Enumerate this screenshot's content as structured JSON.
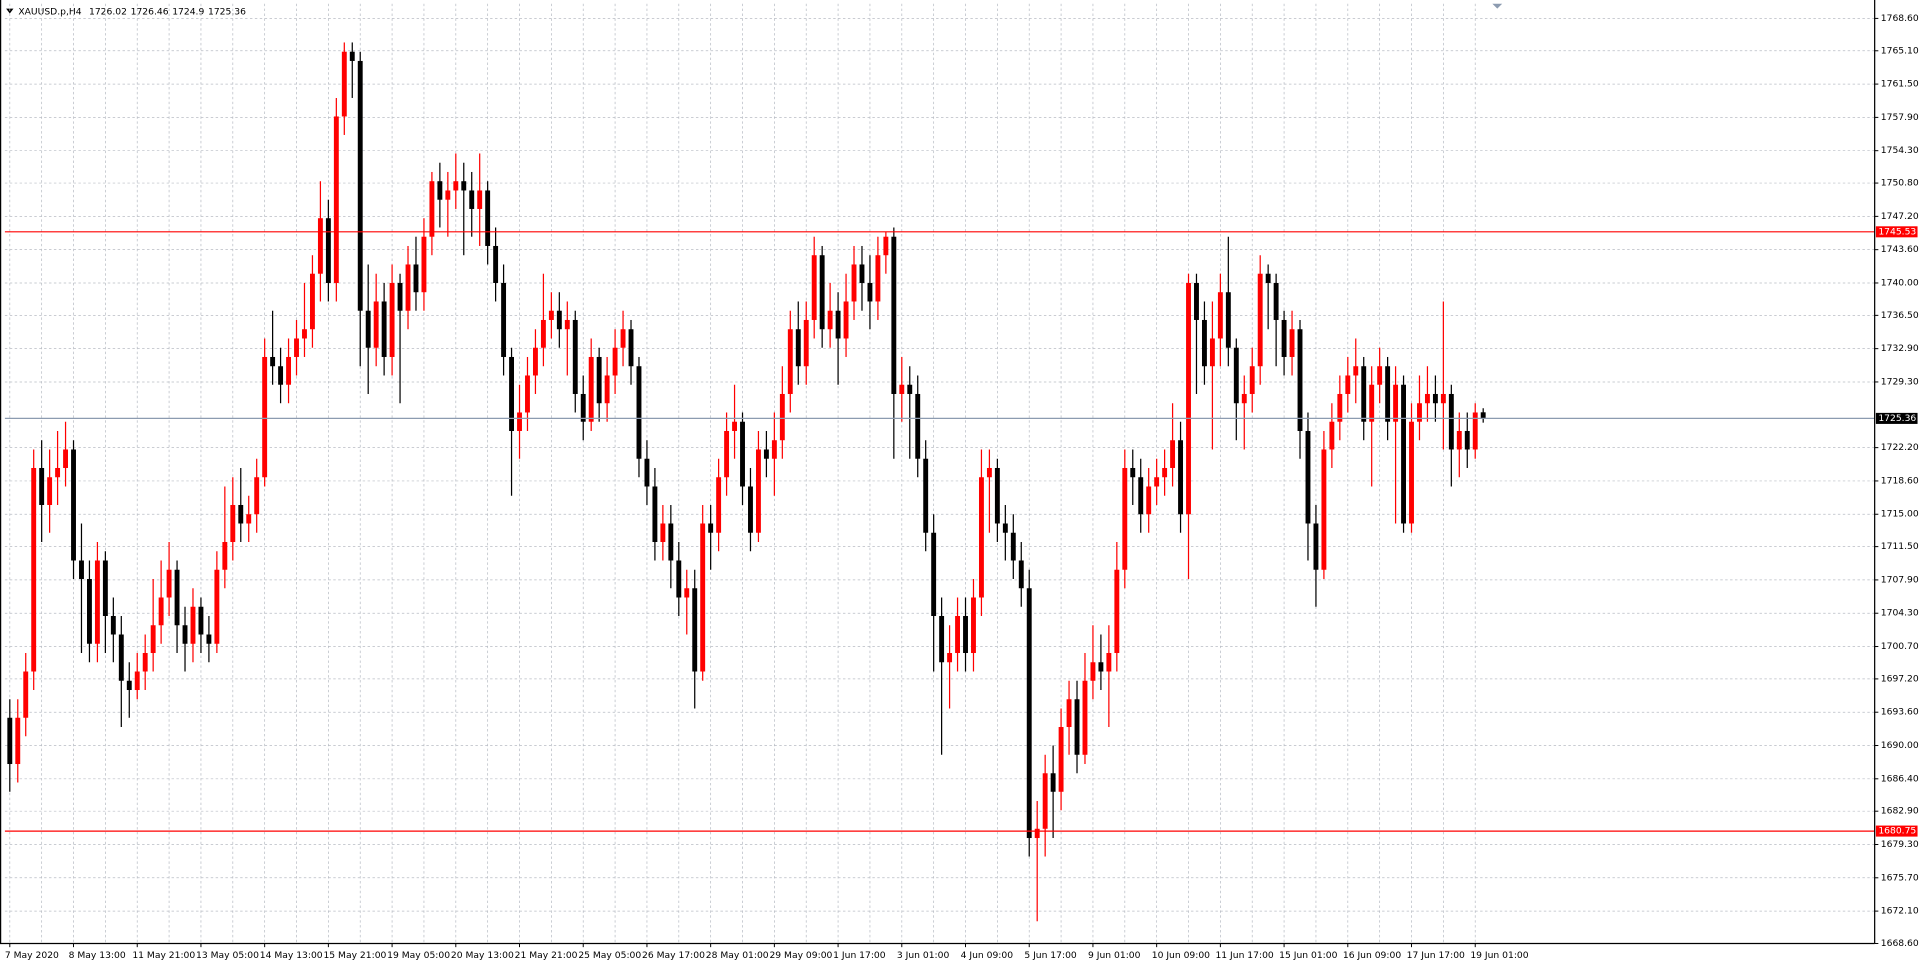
{
  "chart_data": {
    "type": "candlestick",
    "title": "XAUUSD.p,H4",
    "categories": [
      "7 May 2020",
      null,
      null,
      null,
      null,
      null,
      null,
      null,
      "8 May 13:00",
      null,
      null,
      null,
      null,
      null,
      null,
      null,
      "11 May 21:00",
      null,
      null,
      null,
      null,
      null,
      null,
      null,
      "13 May 05:00",
      null,
      null,
      null,
      null,
      null,
      null,
      null,
      "14 May 13:00",
      null,
      null,
      null,
      null,
      null,
      null,
      null,
      "15 May 21:00",
      null,
      null,
      null,
      null,
      null,
      null,
      null,
      "19 May 05:00",
      null,
      null,
      null,
      null,
      null,
      null,
      null,
      "20 May 13:00",
      null,
      null,
      null,
      null,
      null,
      null,
      null,
      "21 May 21:00",
      null,
      null,
      null,
      null,
      null,
      null,
      null,
      "25 May 05:00",
      null,
      null,
      null,
      null,
      null,
      null,
      null,
      "26 May 17:00",
      null,
      null,
      null,
      null,
      null,
      null,
      null,
      "28 May 01:00",
      null,
      null,
      null,
      null,
      null,
      null,
      null,
      "29 May 09:00",
      null,
      null,
      null,
      null,
      null,
      null,
      null,
      "1 Jun 17:00",
      null,
      null,
      null,
      null,
      null,
      null,
      null,
      "3 Jun 01:00",
      null,
      null,
      null,
      null,
      null,
      null,
      null,
      "4 Jun 09:00",
      null,
      null,
      null,
      null,
      null,
      null,
      null,
      "5 Jun 17:00",
      null,
      null,
      null,
      null,
      null,
      null,
      null,
      "9 Jun 01:00",
      null,
      null,
      null,
      null,
      null,
      null,
      null,
      "10 Jun 09:00",
      null,
      null,
      null,
      null,
      null,
      null,
      null,
      "11 Jun 17:00",
      null,
      null,
      null,
      null,
      null,
      null,
      null,
      "15 Jun 01:00",
      null,
      null,
      null,
      null,
      null,
      null,
      null,
      "16 Jun 09:00",
      null,
      null,
      null,
      null,
      null,
      null,
      null,
      "17 Jun 17:00",
      null,
      null,
      null,
      null,
      null,
      null,
      null,
      "19 Jun 01:00",
      null
    ],
    "open": [
      1693,
      1688,
      1693,
      1698,
      1720,
      1716,
      1719,
      1720,
      1722,
      1710,
      1708,
      1701,
      1710,
      1704,
      1702,
      1697,
      1696,
      1698,
      1700,
      1703,
      1706,
      1709,
      1703,
      1701,
      1705,
      1702,
      1701,
      1709,
      1712,
      1716,
      1714,
      1715,
      1719,
      1732,
      1731,
      1729,
      1732,
      1734,
      1735,
      1741,
      1747,
      1740,
      1758,
      1765,
      1764,
      1737,
      1733,
      1738,
      1732,
      1740,
      1737,
      1742,
      1739,
      1745,
      1751,
      1749,
      1750,
      1751,
      1750,
      1748,
      1750,
      1744,
      1740,
      1732,
      1724,
      1726,
      1730,
      1733,
      1736,
      1737,
      1735,
      1736,
      1728,
      1725,
      1732,
      1727,
      1730,
      1733,
      1735,
      1731,
      1721,
      1718,
      1712,
      1714,
      1710,
      1706,
      1707,
      1698,
      1714,
      1713,
      1719,
      1724,
      1725,
      1718,
      1713,
      1722,
      1721,
      1723,
      1728,
      1735,
      1731,
      1736,
      1743,
      1735,
      1737,
      1734,
      1738,
      1742,
      1740,
      1738,
      1743,
      1745,
      1728,
      1729,
      1728,
      1721,
      1713,
      1704,
      1699,
      1700,
      1704,
      1700,
      1706,
      1719,
      1720,
      1714,
      1713,
      1710,
      1707,
      1680,
      1681,
      1687,
      1685,
      1692,
      1695,
      1689,
      1697,
      1699,
      1698,
      1700,
      1709,
      1720,
      1719,
      1715,
      1718,
      1719,
      1720,
      1723,
      1715,
      1740,
      1736,
      1731,
      1734,
      1739,
      1733,
      1727,
      1728,
      1731,
      1741,
      1740,
      1736,
      1732,
      1735,
      1724,
      1714,
      1709,
      1722,
      1725,
      1728,
      1730,
      1731,
      1725,
      1729,
      1731,
      1725,
      1729,
      1714,
      1725,
      1727,
      1728,
      1727,
      1728,
      1722,
      1724,
      1722,
      1726.02
    ],
    "high": [
      1695,
      1695,
      1700,
      1722,
      1723,
      1722,
      1724,
      1725,
      1723,
      1714,
      1710,
      1712,
      1711,
      1706,
      1704,
      1699,
      1700,
      1702,
      1708,
      1710,
      1712,
      1710,
      1705,
      1707,
      1706,
      1704,
      1711,
      1718,
      1719,
      1720,
      1717,
      1721,
      1734,
      1737,
      1733,
      1734,
      1736,
      1740,
      1743,
      1751,
      1749,
      1760,
      1766,
      1766,
      1765,
      1742,
      1741,
      1740,
      1742,
      1741,
      1744,
      1745,
      1747,
      1752,
      1753,
      1752,
      1754,
      1753,
      1752,
      1754,
      1751,
      1746,
      1742,
      1733,
      1729,
      1732,
      1735,
      1741,
      1739,
      1739,
      1738,
      1737,
      1730,
      1734,
      1733,
      1732,
      1735,
      1737,
      1736,
      1732,
      1723,
      1720,
      1716,
      1716,
      1712,
      1709,
      1709,
      1716,
      1716,
      1721,
      1726,
      1729,
      1726,
      1720,
      1724,
      1724,
      1726,
      1731,
      1737,
      1738,
      1738,
      1745,
      1744,
      1740,
      1739,
      1741,
      1744,
      1744,
      1743,
      1745,
      1745.5,
      1746,
      1732,
      1731,
      1730,
      1723,
      1715,
      1706,
      1703,
      1706,
      1706,
      1708,
      1722,
      1722,
      1721,
      1716,
      1715,
      1712,
      1709,
      1684,
      1689,
      1690,
      1694,
      1697,
      1697,
      1700,
      1703,
      1702,
      1703,
      1712,
      1722,
      1722,
      1721,
      1720,
      1721,
      1722,
      1727,
      1725,
      1741,
      1741,
      1738,
      1738,
      1741,
      1745,
      1734,
      1730,
      1733,
      1743,
      1742,
      1741,
      1737,
      1737,
      1736,
      1726,
      1716,
      1724,
      1727,
      1730,
      1732,
      1734,
      1732,
      1731,
      1733,
      1732,
      1731,
      1730,
      1727,
      1730,
      1731,
      1730,
      1738,
      1729,
      1726,
      1726,
      1727,
      1726.46
    ],
    "low": [
      1685,
      1686,
      1691,
      1696,
      1712,
      1713,
      1716,
      1718,
      1708,
      1700,
      1699,
      1699,
      1700,
      1699,
      1692,
      1693,
      1695,
      1696,
      1698,
      1701,
      1704,
      1700,
      1698,
      1699,
      1700,
      1699,
      1700,
      1707,
      1710,
      1712,
      1712,
      1713,
      1718,
      1729,
      1727,
      1727,
      1730,
      1732,
      1733,
      1738,
      1738,
      1738,
      1756,
      1760,
      1731,
      1728,
      1731,
      1730,
      1730,
      1727,
      1735,
      1737,
      1737,
      1743,
      1746,
      1745,
      1748,
      1743,
      1745,
      1744,
      1742,
      1738,
      1730,
      1717,
      1721,
      1724,
      1728,
      1731,
      1734,
      1733,
      1730,
      1726,
      1723,
      1724,
      1725,
      1725,
      1728,
      1731,
      1729,
      1719,
      1716,
      1710,
      1710,
      1707,
      1704,
      1702,
      1694,
      1697,
      1709,
      1711,
      1717,
      1721,
      1716,
      1711,
      1712,
      1719,
      1717,
      1721,
      1726,
      1729,
      1729,
      1734,
      1733,
      1733,
      1729,
      1732,
      1736,
      1737,
      1735,
      1736,
      1741,
      1721,
      1725,
      1721,
      1719,
      1711,
      1698,
      1689,
      1694,
      1698,
      1698,
      1698,
      1704,
      1713,
      1712,
      1710,
      1708,
      1705,
      1678,
      1671,
      1678,
      1680,
      1683,
      1689,
      1687,
      1688,
      1695,
      1696,
      1692,
      1698,
      1707,
      1716,
      1713,
      1713,
      1716,
      1717,
      1718,
      1713,
      1708,
      1728,
      1729,
      1722,
      1731,
      1731,
      1723,
      1722,
      1726,
      1729,
      1735,
      1731,
      1730,
      1730,
      1721,
      1710,
      1705,
      1708,
      1720,
      1723,
      1726,
      1727,
      1723,
      1718,
      1727,
      1723,
      1714,
      1713,
      1713,
      1723,
      1725,
      1725,
      1722,
      1718,
      1719,
      1720,
      1721,
      1724.9
    ],
    "close": [
      1688,
      1693,
      1698,
      1720,
      1716,
      1719,
      1720,
      1722,
      1710,
      1708,
      1701,
      1710,
      1704,
      1702,
      1697,
      1696,
      1698,
      1700,
      1703,
      1706,
      1709,
      1703,
      1701,
      1705,
      1702,
      1701,
      1709,
      1712,
      1716,
      1714,
      1715,
      1719,
      1732,
      1731,
      1729,
      1732,
      1734,
      1735,
      1741,
      1747,
      1740,
      1758,
      1765,
      1764,
      1737,
      1733,
      1738,
      1732,
      1740,
      1737,
      1742,
      1739,
      1745,
      1751,
      1749,
      1750,
      1751,
      1750,
      1748,
      1750,
      1744,
      1740,
      1732,
      1724,
      1726,
      1730,
      1733,
      1736,
      1737,
      1735,
      1736,
      1728,
      1725,
      1732,
      1727,
      1730,
      1733,
      1735,
      1731,
      1721,
      1718,
      1712,
      1714,
      1710,
      1706,
      1707,
      1698,
      1714,
      1713,
      1719,
      1724,
      1725,
      1718,
      1713,
      1722,
      1721,
      1723,
      1728,
      1735,
      1731,
      1736,
      1743,
      1735,
      1737,
      1734,
      1738,
      1742,
      1740,
      1738,
      1743,
      1745,
      1728,
      1729,
      1728,
      1721,
      1713,
      1704,
      1699,
      1700,
      1704,
      1700,
      1706,
      1719,
      1720,
      1714,
      1713,
      1710,
      1707,
      1680,
      1681,
      1687,
      1685,
      1692,
      1695,
      1689,
      1697,
      1699,
      1698,
      1700,
      1709,
      1720,
      1719,
      1715,
      1718,
      1719,
      1720,
      1723,
      1715,
      1740,
      1736,
      1731,
      1734,
      1739,
      1733,
      1727,
      1728,
      1731,
      1741,
      1740,
      1736,
      1732,
      1735,
      1724,
      1714,
      1709,
      1722,
      1725,
      1728,
      1730,
      1731,
      1725,
      1729,
      1731,
      1725,
      1729,
      1714,
      1725,
      1727,
      1728,
      1727,
      1728,
      1722,
      1724,
      1722,
      1726,
      1725.36
    ],
    "up_color": "#ff0000",
    "down_color": "#000000",
    "ylim": [
      1668.6,
      1770.19
    ],
    "yticks": [
      {
        "value": 1668.6,
        "label": "1668.60"
      },
      {
        "value": 1672.1,
        "label": "1672.10"
      },
      {
        "value": 1675.7,
        "label": "1675.70"
      },
      {
        "value": 1679.3,
        "label": "1679.30"
      },
      {
        "value": 1682.9,
        "label": "1682.90"
      },
      {
        "value": 1686.4,
        "label": "1686.40"
      },
      {
        "value": 1690,
        "label": "1690.00"
      },
      {
        "value": 1693.6,
        "label": "1693.60"
      },
      {
        "value": 1697.2,
        "label": "1697.20"
      },
      {
        "value": 1700.7,
        "label": "1700.70"
      },
      {
        "value": 1704.3,
        "label": "1704.30"
      },
      {
        "value": 1707.9,
        "label": "1707.90"
      },
      {
        "value": 1711.5,
        "label": "1711.50"
      },
      {
        "value": 1715,
        "label": "1715.00"
      },
      {
        "value": 1718.6,
        "label": "1718.60"
      },
      {
        "value": 1722.2,
        "label": "1722.20"
      },
      {
        "value": 1729.3,
        "label": "1729.30"
      },
      {
        "value": 1732.9,
        "label": "1732.90"
      },
      {
        "value": 1736.5,
        "label": "1736.50"
      },
      {
        "value": 1740,
        "label": "1740.00"
      },
      {
        "value": 1743.6,
        "label": "1743.60"
      },
      {
        "value": 1747.2,
        "label": "1747.20"
      },
      {
        "value": 1750.8,
        "label": "1750.80"
      },
      {
        "value": 1754.3,
        "label": "1754.30"
      },
      {
        "value": 1757.9,
        "label": "1757.90"
      },
      {
        "value": 1761.5,
        "label": "1761.50"
      },
      {
        "value": 1765.1,
        "label": "1765.10"
      },
      {
        "value": 1768.6,
        "label": "1768.60"
      }
    ],
    "grid": true,
    "hlines": [
      {
        "value": 1745.53,
        "color": "#ff0000"
      },
      {
        "value": 1680.75,
        "color": "#ff0000"
      }
    ],
    "price_line_color": "#8c9bb0"
  }
}
